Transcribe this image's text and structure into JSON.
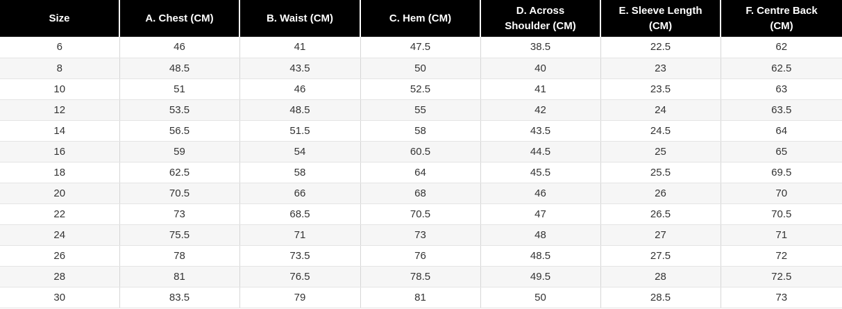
{
  "table": {
    "headers": [
      [
        "Size"
      ],
      [
        "A. Chest (CM)"
      ],
      [
        "B. Waist (CM)"
      ],
      [
        "C. Hem (CM)"
      ],
      [
        "D. Across",
        "Shoulder (CM)"
      ],
      [
        "E. Sleeve Length",
        "(CM)"
      ],
      [
        "F. Centre Back",
        "(CM)"
      ]
    ],
    "rows": [
      [
        "6",
        "46",
        "41",
        "47.5",
        "38.5",
        "22.5",
        "62"
      ],
      [
        "8",
        "48.5",
        "43.5",
        "50",
        "40",
        "23",
        "62.5"
      ],
      [
        "10",
        "51",
        "46",
        "52.5",
        "41",
        "23.5",
        "63"
      ],
      [
        "12",
        "53.5",
        "48.5",
        "55",
        "42",
        "24",
        "63.5"
      ],
      [
        "14",
        "56.5",
        "51.5",
        "58",
        "43.5",
        "24.5",
        "64"
      ],
      [
        "16",
        "59",
        "54",
        "60.5",
        "44.5",
        "25",
        "65"
      ],
      [
        "18",
        "62.5",
        "58",
        "64",
        "45.5",
        "25.5",
        "69.5"
      ],
      [
        "20",
        "70.5",
        "66",
        "68",
        "46",
        "26",
        "70"
      ],
      [
        "22",
        "73",
        "68.5",
        "70.5",
        "47",
        "26.5",
        "70.5"
      ],
      [
        "24",
        "75.5",
        "71",
        "73",
        "48",
        "27",
        "71"
      ],
      [
        "26",
        "78",
        "73.5",
        "76",
        "48.5",
        "27.5",
        "72"
      ],
      [
        "28",
        "81",
        "76.5",
        "78.5",
        "49.5",
        "28",
        "72.5"
      ],
      [
        "30",
        "83.5",
        "79",
        "81",
        "50",
        "28.5",
        "73"
      ]
    ]
  }
}
